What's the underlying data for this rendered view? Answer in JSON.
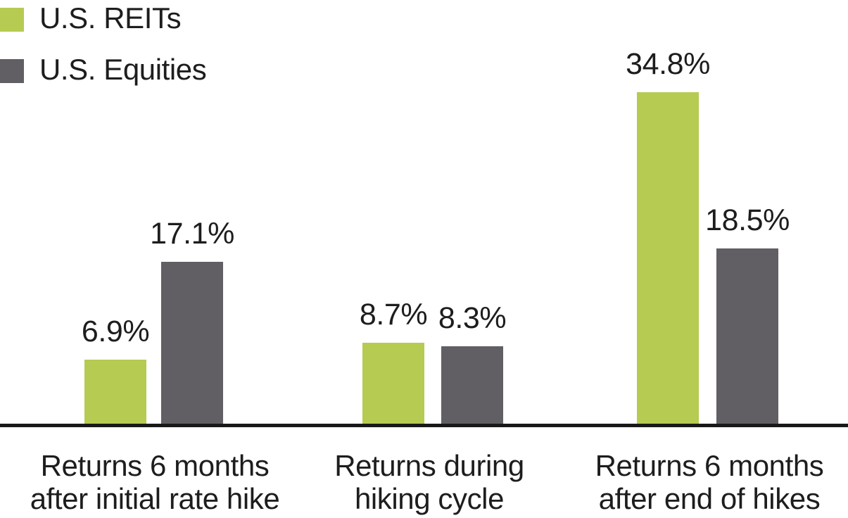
{
  "chart_data": {
    "type": "bar",
    "title": "",
    "xlabel": "",
    "ylabel": "",
    "ylim": [
      0,
      40
    ],
    "grid": false,
    "y_axis_shown": false,
    "legend_position": "top-left",
    "categories": [
      "Returns 6 months after initial rate hike",
      "Returns during hiking cycle",
      "Returns 6 months after end of hikes"
    ],
    "categories_lines": [
      [
        "Returns 6 months",
        "after initial rate hike"
      ],
      [
        "Returns during",
        "hiking cycle"
      ],
      [
        "Returns 6 months",
        "after end of hikes"
      ]
    ],
    "series": [
      {
        "name": "U.S. REITs",
        "color": "#b5cb52",
        "values": [
          6.9,
          8.7,
          34.8
        ],
        "value_labels": [
          "6.9%",
          "8.7%",
          "34.8%"
        ]
      },
      {
        "name": "U.S. Equities",
        "color": "#615e64",
        "values": [
          17.1,
          8.3,
          18.5
        ],
        "value_labels": [
          "17.1%",
          "8.3%",
          "18.5%"
        ]
      }
    ]
  },
  "colors": {
    "reits_green": "#b5cb52",
    "equities_gray": "#615e64",
    "axis_line": "#191919",
    "text": "#1d1d1d",
    "background": "#ffffff"
  }
}
